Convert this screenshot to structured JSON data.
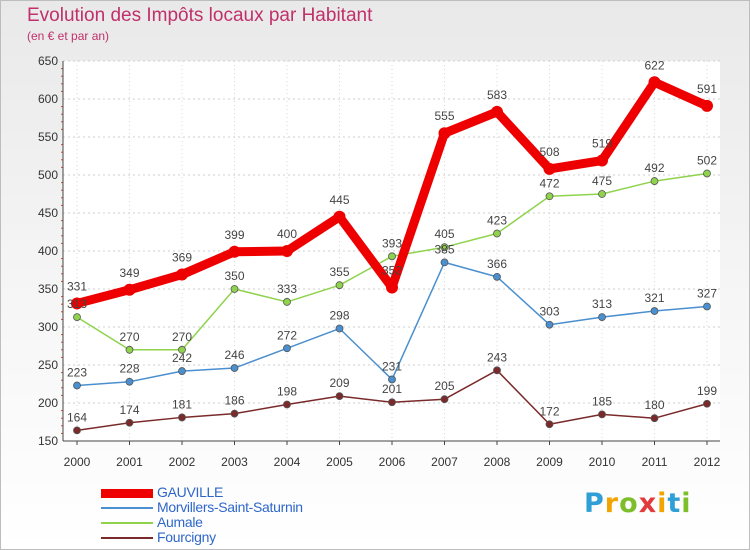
{
  "header": {
    "title": "Evolution des Impôts locaux par Habitant",
    "subtitle": "(en € et par an)"
  },
  "brand": {
    "text": "Proxiti",
    "letters": [
      {
        "ch": "P",
        "color": "#2f9fd6"
      },
      {
        "ch": "r",
        "color": "#f2a500"
      },
      {
        "ch": "o",
        "color": "#7cbf2a"
      },
      {
        "ch": "x",
        "color": "#e23b3b"
      },
      {
        "ch": "i",
        "color": "#f2a500"
      },
      {
        "ch": "t",
        "color": "#2f9fd6"
      },
      {
        "ch": "i",
        "color": "#7cbf2a"
      }
    ]
  },
  "chart_data": {
    "type": "line",
    "title": "Evolution des Impôts locaux par Habitant",
    "subtitle": "(en € et par an)",
    "x": [
      "2000",
      "2001",
      "2002",
      "2003",
      "2004",
      "2005",
      "2006",
      "2007",
      "2008",
      "2009",
      "2010",
      "2011",
      "2012"
    ],
    "ylim": [
      150,
      650
    ],
    "yticks": [
      150,
      200,
      250,
      300,
      350,
      400,
      450,
      500,
      550,
      600,
      650
    ],
    "grid": "horizontal",
    "legend_position": "bottom-left",
    "series": [
      {
        "name": "GAUVILLE",
        "color": "#ee0000",
        "values": [
          331,
          349,
          369,
          399,
          400,
          445,
          352,
          555,
          583,
          508,
          519,
          622,
          591
        ]
      },
      {
        "name": "Morvillers-Saint-Saturnin",
        "color": "#4a8fcf",
        "values": [
          223,
          228,
          242,
          246,
          272,
          298,
          231,
          385,
          366,
          303,
          313,
          321,
          327
        ]
      },
      {
        "name": "Aumale",
        "color": "#8fd34d",
        "values": [
          313,
          270,
          270,
          350,
          333,
          355,
          393,
          405,
          423,
          472,
          475,
          492,
          502
        ]
      },
      {
        "name": "Fourcigny",
        "color": "#7a2a2a",
        "values": [
          164,
          174,
          181,
          186,
          198,
          209,
          201,
          205,
          243,
          172,
          185,
          180,
          199
        ]
      }
    ]
  }
}
